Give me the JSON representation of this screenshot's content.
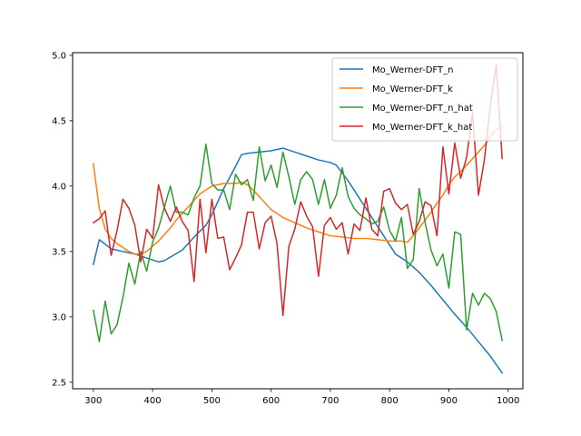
{
  "chart_data": {
    "type": "line",
    "title": "",
    "xlabel": "",
    "ylabel": "",
    "xlim": [
      265,
      1025
    ],
    "ylim": [
      2.45,
      5.02
    ],
    "xticks": [
      300,
      400,
      500,
      600,
      700,
      800,
      900,
      1000
    ],
    "yticks": [
      2.5,
      3.0,
      3.5,
      4.0,
      4.5,
      5.0
    ],
    "xtick_labels": [
      "300",
      "400",
      "500",
      "600",
      "700",
      "800",
      "900",
      "1000"
    ],
    "ytick_labels": [
      "2.5",
      "3.0",
      "3.5",
      "4.0",
      "4.5",
      "5.0"
    ],
    "grid": false,
    "legend_position": "top-right",
    "series": [
      {
        "name": "Mo_Werner-DFT_n",
        "color": "#1f77b4",
        "x": [
          300,
          310,
          330,
          350,
          370,
          390,
          410,
          420,
          450,
          470,
          490,
          500,
          520,
          540,
          550,
          560,
          580,
          600,
          620,
          640,
          660,
          680,
          700,
          710,
          730,
          750,
          770,
          790,
          810,
          830,
          850,
          870,
          890,
          910,
          930,
          950,
          970,
          990
        ],
        "y": [
          3.4,
          3.59,
          3.52,
          3.5,
          3.48,
          3.45,
          3.42,
          3.43,
          3.51,
          3.61,
          3.7,
          3.78,
          3.98,
          4.15,
          4.24,
          4.25,
          4.26,
          4.27,
          4.29,
          4.26,
          4.23,
          4.2,
          4.18,
          4.16,
          4.04,
          3.9,
          3.76,
          3.62,
          3.48,
          3.42,
          3.34,
          3.24,
          3.13,
          3.02,
          2.92,
          2.81,
          2.7,
          2.57
        ]
      },
      {
        "name": "Mo_Werner-DFT_k",
        "color": "#ff7f0e",
        "x": [
          300,
          310,
          320,
          330,
          340,
          350,
          360,
          370,
          380,
          390,
          400,
          410,
          420,
          430,
          440,
          450,
          460,
          470,
          480,
          490,
          500,
          520,
          540,
          550,
          560,
          570,
          580,
          600,
          620,
          640,
          660,
          680,
          700,
          720,
          740,
          760,
          780,
          800,
          820,
          830,
          840,
          850,
          860,
          870,
          880,
          890,
          900,
          910,
          920,
          930,
          940,
          950,
          960,
          970,
          980,
          990
        ],
        "y": [
          4.17,
          3.83,
          3.67,
          3.6,
          3.56,
          3.53,
          3.5,
          3.48,
          3.48,
          3.5,
          3.54,
          3.58,
          3.63,
          3.68,
          3.74,
          3.79,
          3.84,
          3.89,
          3.94,
          3.97,
          4.0,
          4.02,
          4.02,
          4.03,
          4.01,
          3.97,
          3.92,
          3.82,
          3.76,
          3.72,
          3.68,
          3.65,
          3.62,
          3.61,
          3.6,
          3.6,
          3.59,
          3.58,
          3.58,
          3.57,
          3.62,
          3.68,
          3.74,
          3.8,
          3.87,
          3.93,
          4.01,
          4.07,
          4.11,
          4.16,
          4.21,
          4.26,
          4.31,
          4.38,
          4.43,
          4.46
        ]
      },
      {
        "name": "Mo_Werner-DFT_n_hat",
        "color": "#2ca02c",
        "x": [
          300,
          310,
          320,
          330,
          340,
          350,
          360,
          370,
          380,
          390,
          400,
          410,
          420,
          430,
          440,
          450,
          460,
          470,
          480,
          490,
          500,
          510,
          520,
          530,
          540,
          550,
          560,
          570,
          580,
          590,
          600,
          610,
          620,
          630,
          640,
          650,
          660,
          670,
          680,
          690,
          700,
          710,
          720,
          730,
          740,
          750,
          760,
          770,
          780,
          790,
          800,
          810,
          820,
          830,
          840,
          850,
          860,
          870,
          880,
          890,
          900,
          910,
          920,
          930,
          940,
          950,
          960,
          970,
          980,
          990
        ],
        "y": [
          3.05,
          2.81,
          3.12,
          2.87,
          2.94,
          3.15,
          3.41,
          3.25,
          3.5,
          3.35,
          3.57,
          3.68,
          3.84,
          4.0,
          3.8,
          3.8,
          3.78,
          3.91,
          4.0,
          4.32,
          4.02,
          3.97,
          3.97,
          3.82,
          4.09,
          4.01,
          4.05,
          3.89,
          4.3,
          4.04,
          4.16,
          3.99,
          4.26,
          4.07,
          3.86,
          4.05,
          4.11,
          4.05,
          3.86,
          4.05,
          3.83,
          3.93,
          4.14,
          3.92,
          3.83,
          3.78,
          3.75,
          3.71,
          3.73,
          3.84,
          3.66,
          3.58,
          3.76,
          3.37,
          3.44,
          3.98,
          3.72,
          3.51,
          3.39,
          3.48,
          3.22,
          3.65,
          3.63,
          2.9,
          3.18,
          3.09,
          3.18,
          3.14,
          3.04,
          2.82
        ]
      },
      {
        "name": "Mo_Werner-DFT_k_hat",
        "color": "#d62728",
        "x": [
          300,
          310,
          320,
          330,
          340,
          350,
          360,
          370,
          380,
          390,
          400,
          410,
          420,
          430,
          440,
          450,
          460,
          470,
          480,
          490,
          500,
          510,
          520,
          530,
          540,
          550,
          560,
          570,
          580,
          590,
          600,
          610,
          620,
          630,
          640,
          650,
          660,
          670,
          680,
          690,
          700,
          710,
          720,
          730,
          740,
          750,
          760,
          770,
          780,
          790,
          800,
          810,
          820,
          830,
          840,
          850,
          860,
          870,
          880,
          890,
          900,
          910,
          920,
          930,
          940,
          950,
          960,
          970,
          980,
          990
        ],
        "y": [
          3.72,
          3.75,
          3.81,
          3.47,
          3.66,
          3.9,
          3.83,
          3.7,
          3.42,
          3.67,
          3.6,
          4.01,
          3.83,
          3.73,
          3.84,
          3.73,
          3.66,
          3.27,
          3.9,
          3.49,
          3.9,
          3.6,
          3.61,
          3.36,
          3.45,
          3.55,
          3.8,
          3.8,
          3.52,
          3.72,
          3.77,
          3.56,
          3.01,
          3.54,
          3.67,
          3.88,
          3.77,
          3.69,
          3.31,
          3.7,
          3.76,
          3.67,
          3.72,
          3.48,
          3.71,
          3.66,
          3.91,
          3.67,
          3.62,
          3.96,
          3.98,
          3.87,
          3.82,
          3.86,
          3.63,
          3.73,
          3.88,
          3.85,
          3.62,
          4.3,
          3.94,
          4.33,
          4.06,
          4.22,
          4.56,
          3.93,
          4.2,
          4.61,
          4.93,
          4.21
        ]
      }
    ]
  }
}
